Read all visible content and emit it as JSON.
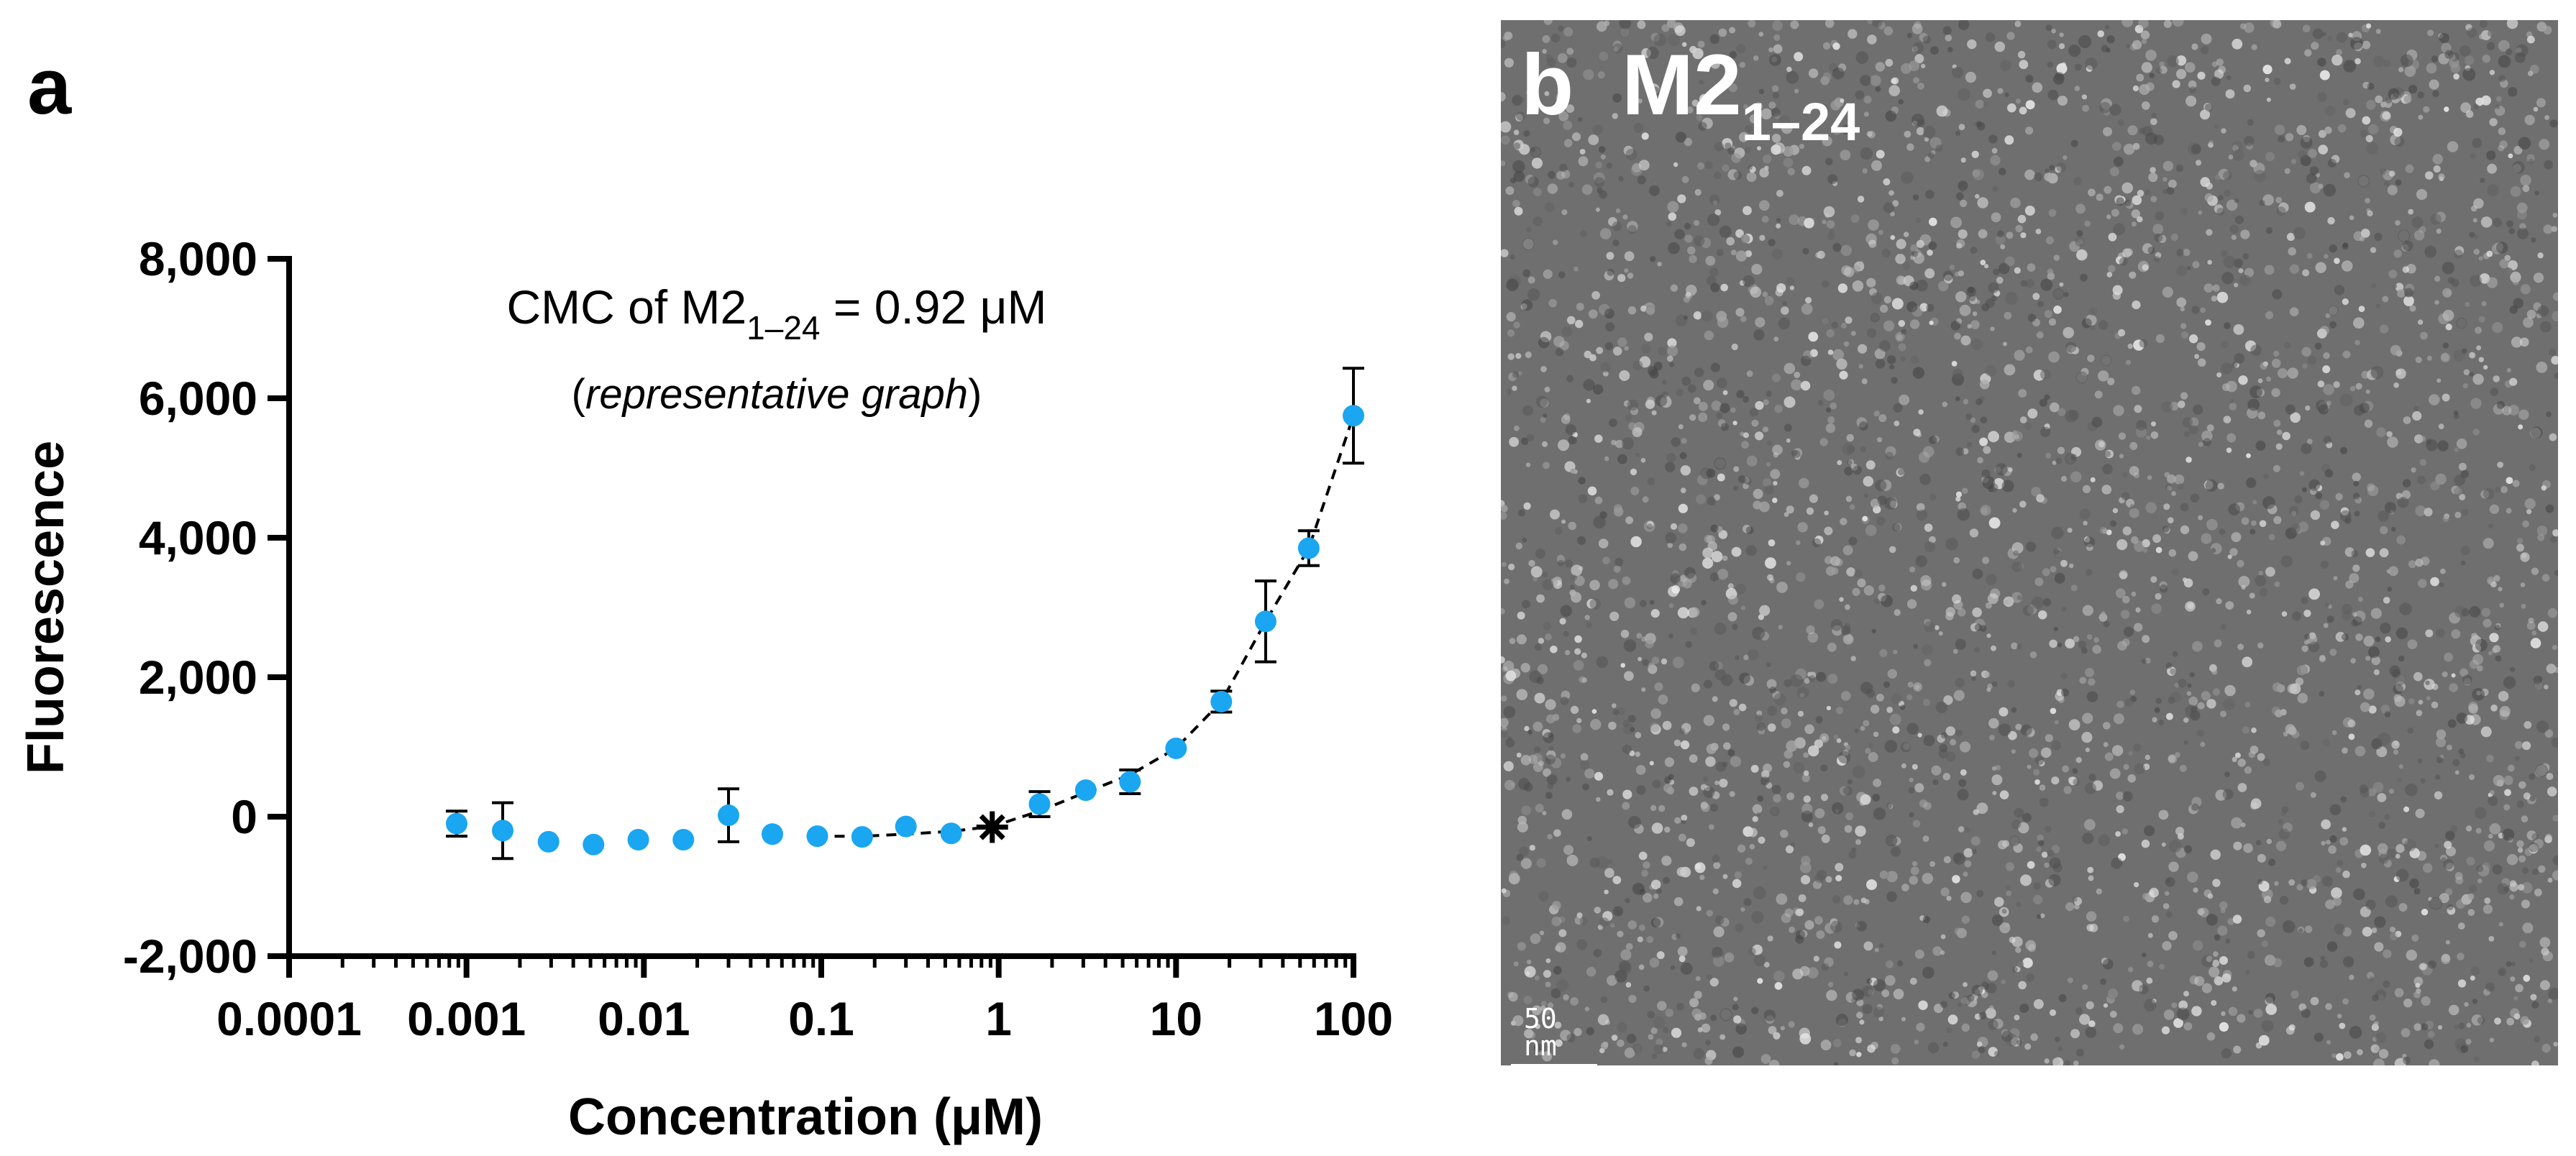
{
  "panel_a": {
    "letter": "a"
  },
  "panel_b": {
    "letter": "b",
    "title_main": "M2",
    "title_sub": "1–24",
    "scale_bar_label": "50 nm"
  },
  "colors": {
    "data_point": "#1aa6f0",
    "error_bar": "#000000",
    "axis": "#000000",
    "fit_line": "#000000",
    "marker": "#000000",
    "tem_background": "#6f6f6f"
  },
  "chart_data": {
    "type": "scatter",
    "title": "CMC of M2",
    "title_sub": "1–24",
    "title_value": " = 0.92 μM",
    "subtitle_italic": "representative graph",
    "xlabel": "Concentration (μM)",
    "ylabel": "Fluorescence",
    "xscale": "log",
    "xlim": [
      0.0001,
      100
    ],
    "ylim": [
      -2000,
      8000
    ],
    "xticks": [
      0.0001,
      0.001,
      0.01,
      0.1,
      1,
      10,
      100
    ],
    "xtick_labels": [
      "0.0001",
      "0.001",
      "0.01",
      "0.1",
      "1",
      "10",
      "100"
    ],
    "yticks": [
      -2000,
      0,
      2000,
      4000,
      6000,
      8000
    ],
    "ytick_labels": [
      "-2,000",
      "0",
      "2,000",
      "4,000",
      "6,000",
      "8,000"
    ],
    "series": [
      {
        "name": "M2 1–24",
        "x": [
          0.00088,
          0.0016,
          0.0029,
          0.0052,
          0.0093,
          0.0167,
          0.03,
          0.053,
          0.095,
          0.17,
          0.3,
          0.54,
          1.7,
          3.1,
          5.5,
          10,
          18,
          32,
          56,
          100
        ],
        "y": [
          -100,
          -200,
          -360,
          -400,
          -330,
          -330,
          20,
          -250,
          -280,
          -290,
          -140,
          -240,
          180,
          380,
          500,
          980,
          1650,
          2800,
          3850,
          5750
        ],
        "err": [
          180,
          400,
          0,
          0,
          0,
          0,
          380,
          0,
          0,
          0,
          0,
          0,
          180,
          0,
          170,
          0,
          150,
          580,
          250,
          680
        ]
      }
    ],
    "fit_line": {
      "style": "dashed",
      "x": [
        0.095,
        0.17,
        0.3,
        0.54,
        0.92,
        1.7,
        3.1,
        5.5,
        10,
        18,
        32,
        56,
        100
      ],
      "y": [
        -280,
        -280,
        -250,
        -210,
        -140,
        80,
        350,
        600,
        980,
        1650,
        2800,
        3850,
        5750
      ]
    },
    "cmc_marker": {
      "x": 0.92,
      "y": -150,
      "symbol": "asterisk"
    }
  }
}
